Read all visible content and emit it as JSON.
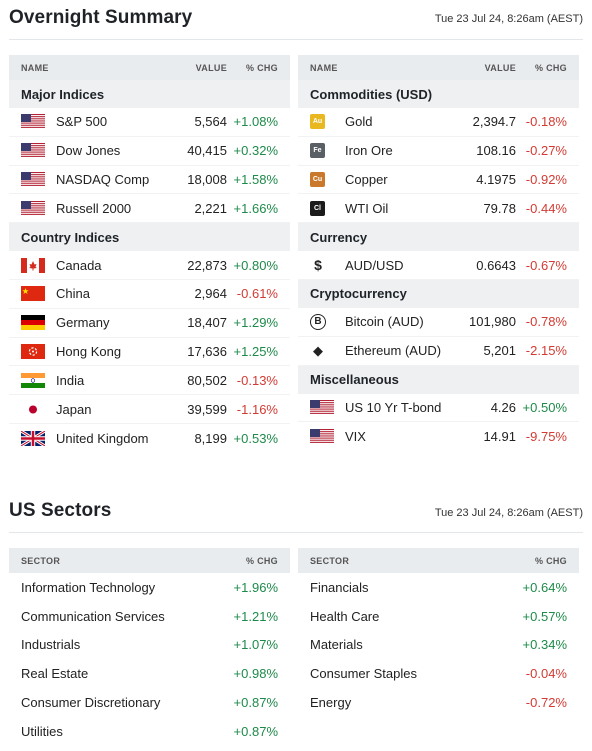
{
  "overnight": {
    "title": "Overnight Summary",
    "date": "Tue 23 Jul 24, 8:26am (AEST)",
    "header": {
      "name": "NAME",
      "value": "VALUE",
      "chg": "% CHG"
    },
    "left": [
      {
        "group": "Major Indices",
        "rows": [
          {
            "icon": "us-flag-icon",
            "name": "S&P 500",
            "value": "5,564",
            "chg": "+1.08%"
          },
          {
            "icon": "us-flag-icon",
            "name": "Dow Jones",
            "value": "40,415",
            "chg": "+0.32%"
          },
          {
            "icon": "us-flag-icon",
            "name": "NASDAQ Comp",
            "value": "18,008",
            "chg": "+1.58%"
          },
          {
            "icon": "us-flag-icon",
            "name": "Russell 2000",
            "value": "2,221",
            "chg": "+1.66%"
          }
        ]
      },
      {
        "group": "Country Indices",
        "rows": [
          {
            "icon": "canada-flag-icon",
            "name": "Canada",
            "value": "22,873",
            "chg": "+0.80%"
          },
          {
            "icon": "china-flag-icon",
            "name": "China",
            "value": "2,964",
            "chg": "-0.61%"
          },
          {
            "icon": "germany-flag-icon",
            "name": "Germany",
            "value": "18,407",
            "chg": "+1.29%"
          },
          {
            "icon": "hongkong-flag-icon",
            "name": "Hong Kong",
            "value": "17,636",
            "chg": "+1.25%"
          },
          {
            "icon": "india-flag-icon",
            "name": "India",
            "value": "80,502",
            "chg": "-0.13%"
          },
          {
            "icon": "japan-flag-icon",
            "name": "Japan",
            "value": "39,599",
            "chg": "-1.16%"
          },
          {
            "icon": "uk-flag-icon",
            "name": "United Kingdom",
            "value": "8,199",
            "chg": "+0.53%"
          }
        ]
      }
    ],
    "right": [
      {
        "group": "Commodities (USD)",
        "rows": [
          {
            "icon": "gold-icon",
            "badge": "Au",
            "name": "Gold",
            "value": "2,394.7",
            "chg": "-0.18%"
          },
          {
            "icon": "iron-ore-icon",
            "badge": "Fe",
            "name": "Iron Ore",
            "value": "108.16",
            "chg": "-0.27%"
          },
          {
            "icon": "copper-icon",
            "badge": "Cu",
            "name": "Copper",
            "value": "4.1975",
            "chg": "-0.92%"
          },
          {
            "icon": "wti-oil-icon",
            "badge": "Cl",
            "name": "WTI Oil",
            "value": "79.78",
            "chg": "-0.44%"
          }
        ]
      },
      {
        "group": "Currency",
        "rows": [
          {
            "icon": "dollar-icon",
            "badge": "$",
            "name": "AUD/USD",
            "value": "0.6643",
            "chg": "-0.67%"
          }
        ]
      },
      {
        "group": "Cryptocurrency",
        "rows": [
          {
            "icon": "bitcoin-icon",
            "badge": "B",
            "name": "Bitcoin (AUD)",
            "value": "101,980",
            "chg": "-0.78%"
          },
          {
            "icon": "ethereum-icon",
            "badge": "◆",
            "name": "Ethereum (AUD)",
            "value": "5,201",
            "chg": "-2.15%"
          }
        ]
      },
      {
        "group": "Miscellaneous",
        "rows": [
          {
            "icon": "us-flag-icon",
            "name": "US 10 Yr T-bond",
            "value": "4.26",
            "chg": "+0.50%"
          },
          {
            "icon": "us-flag-icon",
            "name": "VIX",
            "value": "14.91",
            "chg": "-9.75%"
          }
        ]
      }
    ]
  },
  "sectors": {
    "title": "US Sectors",
    "date": "Tue 23 Jul 24, 8:26am (AEST)",
    "header": {
      "name": "SECTOR",
      "chg": "% CHG"
    },
    "left": [
      {
        "name": "Information Technology",
        "chg": "+1.96%"
      },
      {
        "name": "Communication Services",
        "chg": "+1.21%"
      },
      {
        "name": "Industrials",
        "chg": "+1.07%"
      },
      {
        "name": "Real Estate",
        "chg": "+0.98%"
      },
      {
        "name": "Consumer Discretionary",
        "chg": "+0.87%"
      },
      {
        "name": "Utilities",
        "chg": "+0.87%"
      }
    ],
    "right": [
      {
        "name": "Financials",
        "chg": "+0.64%"
      },
      {
        "name": "Health Care",
        "chg": "+0.57%"
      },
      {
        "name": "Materials",
        "chg": "+0.34%"
      },
      {
        "name": "Consumer Staples",
        "chg": "-0.04%"
      },
      {
        "name": "Energy",
        "chg": "-0.72%"
      }
    ]
  },
  "colors": {
    "positive": "#1e8a4a",
    "negative": "#d23b33",
    "header_bg": "#e9ecef"
  }
}
